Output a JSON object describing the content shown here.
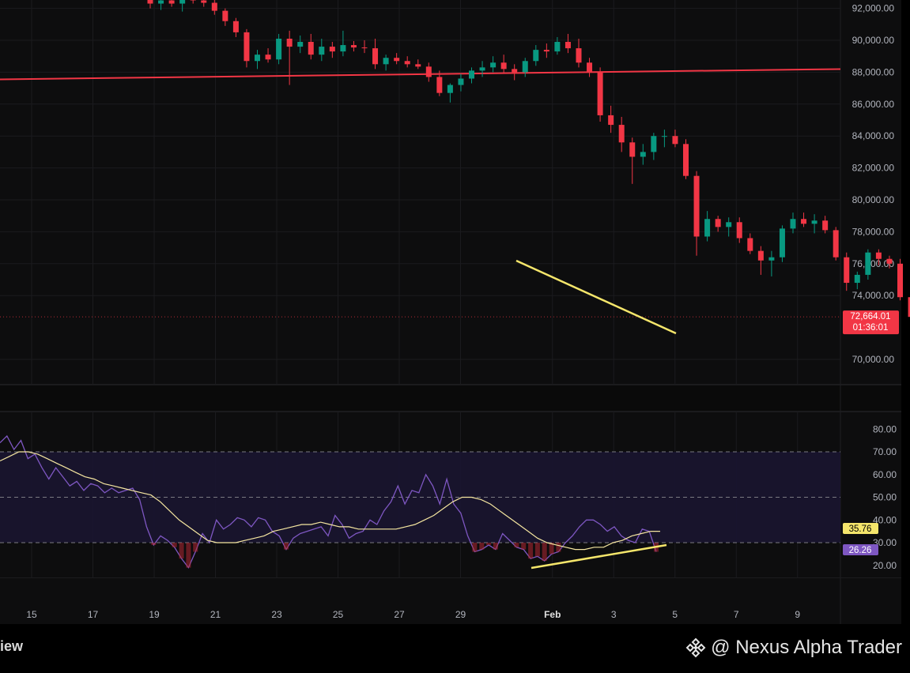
{
  "chart_data": [
    {
      "type": "candlestick",
      "title": "",
      "price_axis": {
        "ticks": [
          92000,
          90000,
          88000,
          86000,
          84000,
          82000,
          80000,
          78000,
          76000,
          74000,
          70000
        ],
        "tick_labels": [
          "92,000.00",
          "90,000.00",
          "88,000.00",
          "86,000.00",
          "84,000.00",
          "82,000.00",
          "80,000.00",
          "78,000.00",
          "76,000.00",
          "74,000.00",
          "70,000.00"
        ]
      },
      "x_axis": {
        "tick_labels": [
          "15",
          "17",
          "19",
          "21",
          "23",
          "25",
          "27",
          "29",
          "Feb",
          "3",
          "5",
          "7",
          "9"
        ],
        "tick_days": [
          15,
          17,
          19,
          21,
          23,
          25,
          27,
          29,
          32,
          34,
          36,
          38,
          40
        ]
      },
      "current_price": {
        "value": 72664.01,
        "label": "72,664.01",
        "countdown": "01:36:01",
        "color": "#f23645"
      },
      "horizontal_line": {
        "price": 87800,
        "color": "#f23645"
      },
      "trendline": {
        "from": {
          "day": 30.7,
          "price": 76200
        },
        "to": {
          "day": 33.1,
          "price": 72000
        },
        "color": "#f5e66b"
      },
      "candles": [
        [
          18.0,
          92600,
          93100,
          92000,
          92300
        ],
        [
          18.35,
          92300,
          92700,
          91900,
          92500
        ],
        [
          18.7,
          92500,
          92900,
          92100,
          92300
        ],
        [
          19.05,
          92300,
          93000,
          91800,
          92600
        ],
        [
          19.4,
          92600,
          92900,
          92300,
          92500
        ],
        [
          19.75,
          92500,
          92800,
          92100,
          92350
        ],
        [
          20.1,
          92350,
          92550,
          91600,
          91850
        ],
        [
          20.45,
          91850,
          92000,
          90900,
          91200
        ],
        [
          20.8,
          91200,
          91400,
          90200,
          90500
        ],
        [
          21.15,
          90500,
          90700,
          88300,
          88700
        ],
        [
          21.5,
          88700,
          89400,
          88200,
          89100
        ],
        [
          21.85,
          89100,
          89500,
          88600,
          88800
        ],
        [
          22.2,
          88800,
          90400,
          88500,
          90100
        ],
        [
          22.55,
          90100,
          90600,
          87200,
          89600
        ],
        [
          22.9,
          89600,
          90300,
          89200,
          89900
        ],
        [
          23.25,
          89900,
          90400,
          88800,
          89100
        ],
        [
          23.6,
          89100,
          90100,
          88700,
          89600
        ],
        [
          23.95,
          89600,
          89900,
          88900,
          89300
        ],
        [
          24.3,
          89300,
          90600,
          89000,
          89700
        ],
        [
          24.65,
          89700,
          89950,
          89300,
          89550
        ],
        [
          25.0,
          89550,
          90000,
          89200,
          89500
        ],
        [
          25.35,
          89500,
          90100,
          88200,
          88500
        ],
        [
          25.7,
          88500,
          89100,
          88100,
          88900
        ],
        [
          26.05,
          88900,
          89200,
          88500,
          88700
        ],
        [
          26.4,
          88700,
          89000,
          88300,
          88500
        ],
        [
          26.75,
          88500,
          88800,
          88200,
          88350
        ],
        [
          27.1,
          88350,
          88600,
          87400,
          87700
        ],
        [
          27.45,
          87700,
          88100,
          86500,
          86700
        ],
        [
          27.8,
          86700,
          87300,
          86100,
          87200
        ],
        [
          28.15,
          87200,
          87900,
          86800,
          87600
        ],
        [
          28.5,
          87600,
          88300,
          87300,
          88100
        ],
        [
          28.85,
          88100,
          88700,
          87700,
          88300
        ],
        [
          29.2,
          88300,
          89000,
          88000,
          88600
        ],
        [
          29.55,
          88600,
          89100,
          87900,
          88200
        ],
        [
          29.9,
          88200,
          88500,
          87500,
          88000
        ],
        [
          30.25,
          88000,
          88900,
          87700,
          88700
        ],
        [
          30.6,
          88700,
          89700,
          88400,
          89400
        ],
        [
          30.95,
          89400,
          89800,
          88900,
          89300
        ],
        [
          31.3,
          89300,
          90200,
          89100,
          89900
        ],
        [
          31.65,
          89900,
          90400,
          89200,
          89500
        ],
        [
          32.0,
          89500,
          90100,
          88300,
          88600
        ],
        [
          32.35,
          88600,
          88900,
          87700,
          88000
        ],
        [
          32.7,
          88000,
          88300,
          84900,
          85300
        ],
        [
          33.05,
          85300,
          85900,
          84200,
          84700
        ],
        [
          33.4,
          84700,
          85200,
          83000,
          83600
        ],
        [
          33.75,
          83600,
          83900,
          81000,
          82700
        ],
        [
          34.1,
          82700,
          83500,
          82200,
          83000
        ],
        [
          34.45,
          83000,
          84200,
          82500,
          84000
        ],
        [
          34.8,
          84000,
          84400,
          83300,
          84000
        ],
        [
          35.15,
          84000,
          84400,
          83300,
          83500
        ],
        [
          35.5,
          83500,
          83800,
          81300,
          81500
        ],
        [
          35.85,
          81500,
          81800,
          76500,
          77700
        ],
        [
          36.2,
          77700,
          79300,
          77400,
          78800
        ],
        [
          36.55,
          78800,
          79000,
          78000,
          78300
        ],
        [
          36.9,
          78300,
          78900,
          77700,
          78600
        ],
        [
          37.25,
          78600,
          78900,
          77300,
          77600
        ],
        [
          37.6,
          77600,
          77900,
          76600,
          76800
        ],
        [
          37.95,
          76800,
          77100,
          75300,
          76200
        ],
        [
          38.3,
          76200,
          76800,
          75200,
          76400
        ],
        [
          38.65,
          76400,
          78400,
          76100,
          78200
        ],
        [
          39.0,
          78200,
          79200,
          77900,
          78800
        ],
        [
          39.35,
          78800,
          79200,
          78300,
          78500
        ],
        [
          39.7,
          78500,
          79100,
          77900,
          78700
        ],
        [
          40.05,
          78700,
          79000,
          77900,
          78100
        ],
        [
          40.4,
          78100,
          78300,
          76200,
          76400
        ],
        [
          40.75,
          76400,
          76700,
          74300,
          74800
        ],
        [
          41.1,
          74800,
          75500,
          74400,
          75300
        ],
        [
          41.45,
          75300,
          76900,
          75000,
          76700
        ],
        [
          41.8,
          76700,
          76900,
          75900,
          76300
        ],
        [
          42.15,
          76300,
          76500,
          75700,
          76000
        ],
        [
          42.5,
          76000,
          76300,
          73700,
          73900
        ],
        [
          42.85,
          73900,
          74200,
          72500,
          72664
        ]
      ],
      "candle_x_map": {
        "day_start": 18.0,
        "day_step_px": 0.35
      }
    },
    {
      "type": "line",
      "indicator": "RSI",
      "y_axis": {
        "ticks": [
          80,
          70,
          60,
          50,
          40,
          30,
          20
        ],
        "tick_labels": [
          "80.00",
          "70.00",
          "60.00",
          "50.00",
          "40.00",
          "30.00",
          "20.00"
        ]
      },
      "bands": {
        "upper": 70,
        "middle": 50,
        "lower": 30
      },
      "series": [
        {
          "role": "rsi",
          "color": "#7e57c2",
          "label": "26.26",
          "values": [
            74,
            77,
            71,
            75,
            67,
            69,
            63,
            58,
            63,
            59,
            55,
            57,
            53,
            56,
            55,
            52,
            54,
            52,
            53,
            54,
            49,
            37,
            29,
            33,
            31,
            28,
            23,
            19,
            26,
            34,
            30,
            40,
            36,
            38,
            41,
            40,
            37,
            41,
            40,
            35,
            33,
            27,
            32,
            34,
            35,
            36,
            37,
            33,
            42,
            38,
            32,
            34,
            35,
            40,
            38,
            44,
            48,
            55,
            47,
            53,
            52,
            60,
            55,
            47,
            58,
            47,
            43,
            33,
            26,
            27,
            29,
            27,
            34,
            31,
            28,
            27,
            23,
            24,
            22,
            25,
            26,
            30,
            33,
            37,
            40,
            40,
            38,
            35,
            37,
            33,
            31,
            30,
            36,
            35,
            26
          ]
        },
        {
          "role": "rsi_ma",
          "color": "#f5e6a0",
          "label": "35.76",
          "values": [
            66,
            68,
            70,
            70,
            69,
            67,
            65,
            63,
            61,
            59,
            58,
            56,
            55,
            54,
            53,
            52,
            51,
            48,
            44,
            40,
            37,
            34,
            31,
            30,
            30,
            30,
            31,
            32,
            33,
            35,
            36,
            37,
            38,
            38,
            39,
            38,
            37,
            37,
            36,
            36,
            36,
            36,
            36,
            37,
            38,
            40,
            42,
            45,
            48,
            50,
            50,
            49,
            47,
            44,
            41,
            38,
            35,
            32,
            30,
            29,
            28,
            27,
            27,
            28,
            28,
            30,
            31,
            33,
            34,
            35,
            35
          ]
        }
      ],
      "trendline": {
        "from": {
          "day": 30.6,
          "value": 24.5
        },
        "to": {
          "day": 33.0,
          "value": 31.0
        },
        "color": "#f5e66b"
      }
    }
  ],
  "footer": {
    "tv_text": "iew",
    "watermark": "@ Nexus Alpha Trader"
  }
}
